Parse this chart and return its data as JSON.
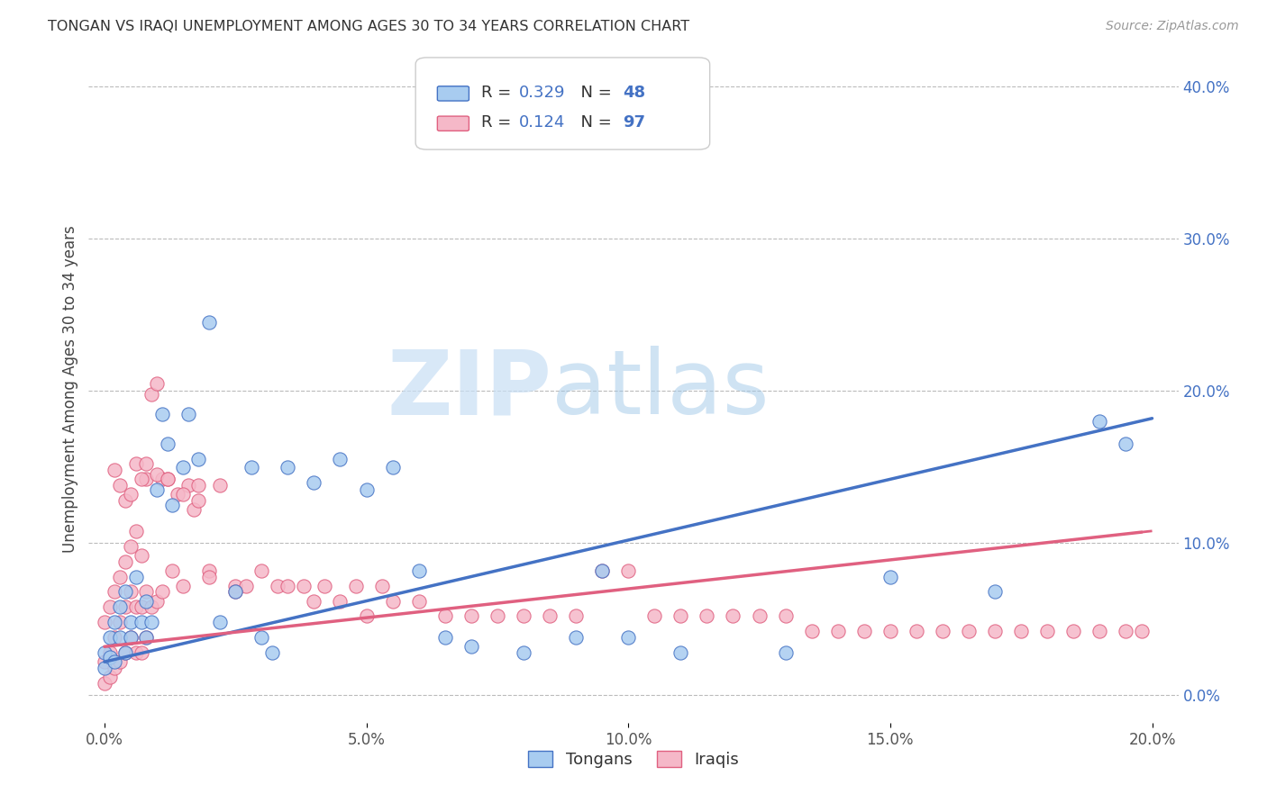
{
  "title": "TONGAN VS IRAQI UNEMPLOYMENT AMONG AGES 30 TO 34 YEARS CORRELATION CHART",
  "source": "Source: ZipAtlas.com",
  "xlim": [
    -0.003,
    0.205
  ],
  "ylim": [
    -0.018,
    0.42
  ],
  "ylabel": "Unemployment Among Ages 30 to 34 years",
  "tongan_color": "#A8CCF0",
  "tongan_edge_color": "#4472C4",
  "iraqi_color": "#F5B8C8",
  "iraqi_edge_color": "#E06080",
  "tongan_line_color": "#4472C4",
  "iraqi_line_color": "#E06080",
  "R_tongan": 0.329,
  "N_tongan": 48,
  "R_iraqi": 0.124,
  "N_iraqi": 97,
  "watermark_zip": "ZIP",
  "watermark_atlas": "atlas",
  "tongan_scatter_x": [
    0.0,
    0.0,
    0.001,
    0.001,
    0.002,
    0.002,
    0.003,
    0.003,
    0.004,
    0.004,
    0.005,
    0.005,
    0.006,
    0.007,
    0.008,
    0.008,
    0.009,
    0.01,
    0.011,
    0.012,
    0.013,
    0.015,
    0.016,
    0.018,
    0.02,
    0.022,
    0.025,
    0.028,
    0.03,
    0.032,
    0.035,
    0.04,
    0.045,
    0.05,
    0.055,
    0.06,
    0.065,
    0.07,
    0.08,
    0.09,
    0.095,
    0.1,
    0.11,
    0.13,
    0.15,
    0.17,
    0.19,
    0.195
  ],
  "tongan_scatter_y": [
    0.028,
    0.018,
    0.038,
    0.025,
    0.048,
    0.022,
    0.058,
    0.038,
    0.068,
    0.028,
    0.048,
    0.038,
    0.078,
    0.048,
    0.062,
    0.038,
    0.048,
    0.135,
    0.185,
    0.165,
    0.125,
    0.15,
    0.185,
    0.155,
    0.245,
    0.048,
    0.068,
    0.15,
    0.038,
    0.028,
    0.15,
    0.14,
    0.155,
    0.135,
    0.15,
    0.082,
    0.038,
    0.032,
    0.028,
    0.038,
    0.082,
    0.038,
    0.028,
    0.028,
    0.078,
    0.068,
    0.18,
    0.165
  ],
  "iraqi_scatter_x": [
    0.0,
    0.0,
    0.0,
    0.001,
    0.001,
    0.001,
    0.002,
    0.002,
    0.002,
    0.003,
    0.003,
    0.003,
    0.004,
    0.004,
    0.004,
    0.005,
    0.005,
    0.005,
    0.006,
    0.006,
    0.006,
    0.007,
    0.007,
    0.007,
    0.008,
    0.008,
    0.008,
    0.009,
    0.009,
    0.01,
    0.01,
    0.011,
    0.011,
    0.012,
    0.013,
    0.014,
    0.015,
    0.016,
    0.017,
    0.018,
    0.02,
    0.022,
    0.025,
    0.027,
    0.03,
    0.033,
    0.035,
    0.038,
    0.04,
    0.042,
    0.045,
    0.048,
    0.05,
    0.053,
    0.055,
    0.06,
    0.065,
    0.07,
    0.075,
    0.08,
    0.085,
    0.09,
    0.095,
    0.1,
    0.105,
    0.11,
    0.115,
    0.12,
    0.125,
    0.13,
    0.135,
    0.14,
    0.145,
    0.15,
    0.155,
    0.16,
    0.165,
    0.17,
    0.175,
    0.18,
    0.185,
    0.19,
    0.195,
    0.198,
    0.002,
    0.003,
    0.004,
    0.005,
    0.006,
    0.007,
    0.008,
    0.01,
    0.012,
    0.015,
    0.018,
    0.02,
    0.025
  ],
  "iraqi_scatter_y": [
    0.048,
    0.022,
    0.008,
    0.058,
    0.028,
    0.012,
    0.068,
    0.038,
    0.018,
    0.078,
    0.048,
    0.022,
    0.088,
    0.058,
    0.028,
    0.098,
    0.068,
    0.038,
    0.108,
    0.058,
    0.028,
    0.092,
    0.058,
    0.028,
    0.142,
    0.068,
    0.038,
    0.198,
    0.058,
    0.205,
    0.062,
    0.142,
    0.068,
    0.142,
    0.082,
    0.132,
    0.072,
    0.138,
    0.122,
    0.138,
    0.082,
    0.138,
    0.072,
    0.072,
    0.082,
    0.072,
    0.072,
    0.072,
    0.062,
    0.072,
    0.062,
    0.072,
    0.052,
    0.072,
    0.062,
    0.062,
    0.052,
    0.052,
    0.052,
    0.052,
    0.052,
    0.052,
    0.082,
    0.082,
    0.052,
    0.052,
    0.052,
    0.052,
    0.052,
    0.052,
    0.042,
    0.042,
    0.042,
    0.042,
    0.042,
    0.042,
    0.042,
    0.042,
    0.042,
    0.042,
    0.042,
    0.042,
    0.042,
    0.042,
    0.148,
    0.138,
    0.128,
    0.132,
    0.152,
    0.142,
    0.152,
    0.145,
    0.142,
    0.132,
    0.128,
    0.078,
    0.068
  ],
  "line_x_start": 0.0,
  "line_x_end": 0.2,
  "tongan_line_y_start": 0.022,
  "tongan_line_y_end": 0.182,
  "iraqi_line_y_start": 0.032,
  "iraqi_line_y_end": 0.108
}
